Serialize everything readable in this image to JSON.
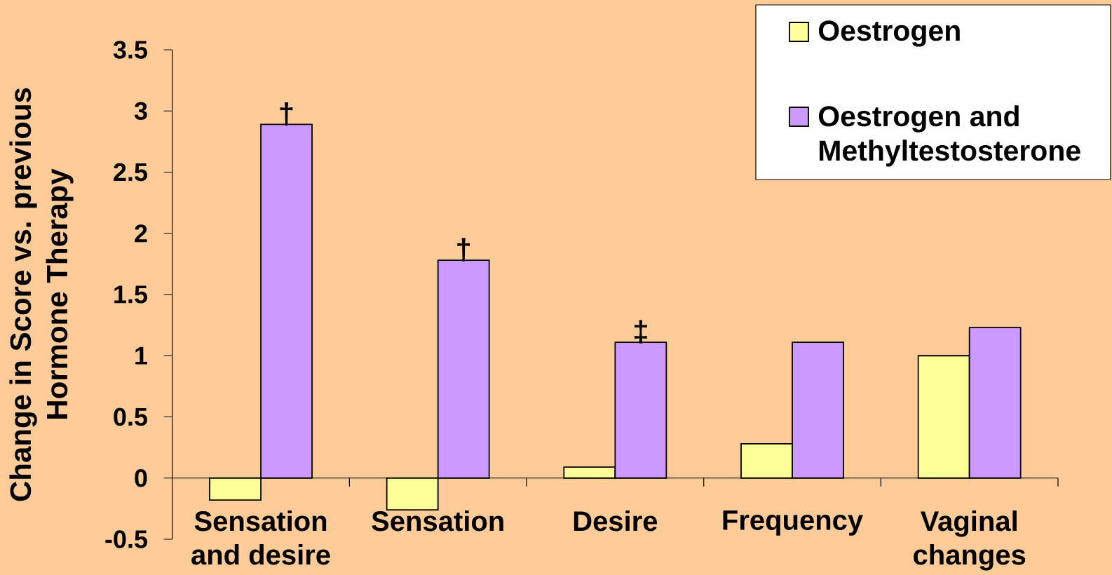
{
  "chart_data": {
    "type": "bar",
    "ylabel": "Change in Score vs. previous Hormone Therapy",
    "categories": [
      "Sensation and desire",
      "Sensation",
      "Desire",
      "Frequency",
      "Vaginal changes"
    ],
    "series": [
      {
        "name": "Oestrogen",
        "color": "#ffff99",
        "values": [
          -0.18,
          -0.26,
          0.09,
          0.28,
          1.0
        ]
      },
      {
        "name": "Oestrogen and Methyltestosterone",
        "color": "#cc99ff",
        "values": [
          2.89,
          1.78,
          1.11,
          1.11,
          1.23
        ]
      }
    ],
    "ylim": [
      -0.5,
      3.5
    ],
    "yticks": [
      -0.5,
      0,
      0.5,
      1,
      1.5,
      2,
      2.5,
      3,
      3.5
    ],
    "annotations": [
      {
        "text": "†",
        "x": "Sensation and desire",
        "y": 2.89
      },
      {
        "text": "†",
        "x": "Sensation",
        "y": 1.78
      },
      {
        "text": "‡",
        "x": "Desire",
        "y": 1.11
      }
    ],
    "legend": "top right",
    "grid": false
  }
}
